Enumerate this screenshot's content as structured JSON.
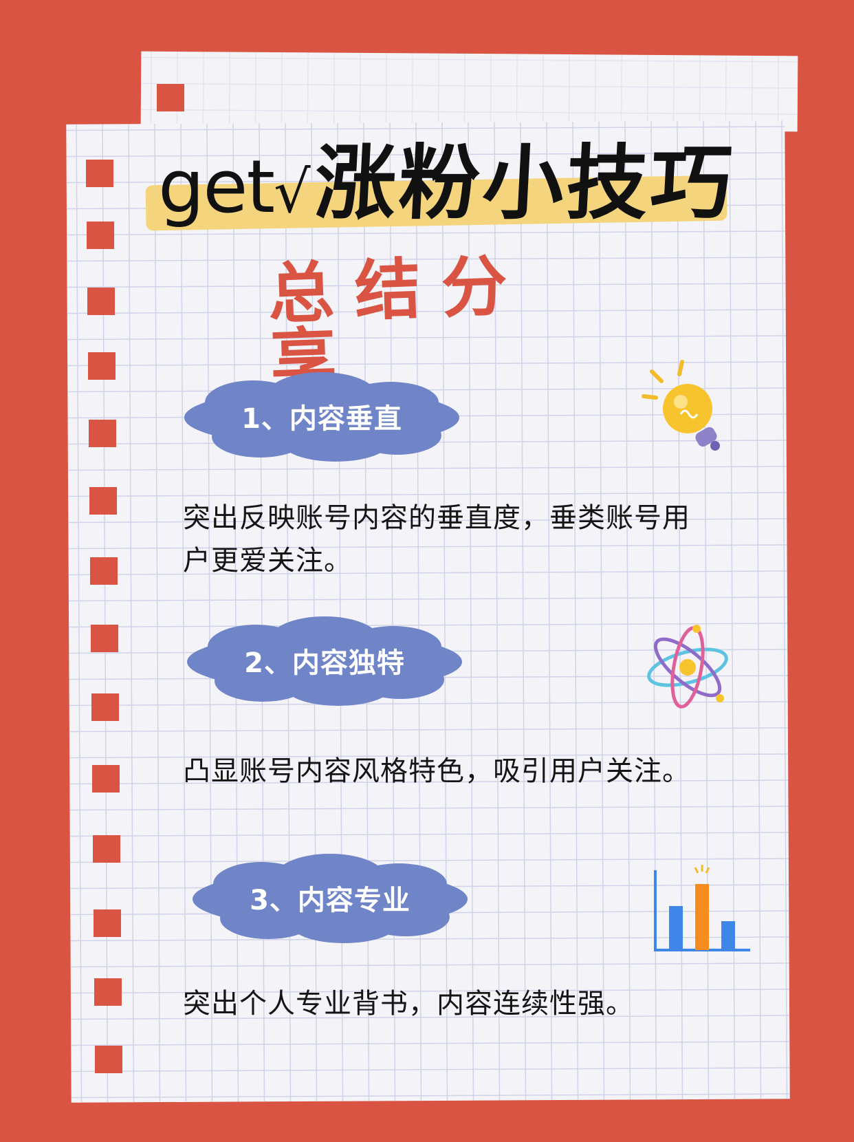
{
  "title": {
    "prefix": "get",
    "check": "√",
    "main": "涨粉小技巧"
  },
  "subtitle": "总结分享",
  "sections": [
    {
      "heading": "1、内容垂直",
      "body": "突出反映账号内容的垂直度，垂类账号用户更爱关注。",
      "icon": "lightbulb-icon"
    },
    {
      "heading": "2、内容独特",
      "body": "凸显账号内容风格特色，吸引用户关注。",
      "icon": "atom-icon"
    },
    {
      "heading": "3、内容专业",
      "body": "突出个人专业背书，内容连续性强。",
      "icon": "bar-chart-icon"
    }
  ],
  "colors": {
    "background": "#d95442",
    "paper": "#f4f4f8",
    "grid": "#cfd3e8",
    "cloud": "#7084c8",
    "highlight": "#f4d57e",
    "accent": "#d95442"
  }
}
